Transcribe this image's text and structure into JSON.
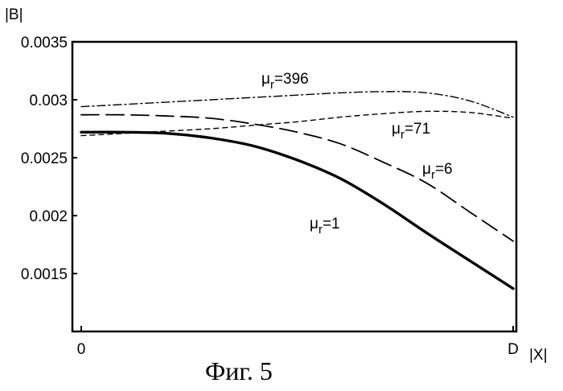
{
  "chart_data": {
    "type": "line",
    "ylabel": "|B|",
    "xlabel": "|X|",
    "caption": "Фиг. 5",
    "xlim": [
      0,
      1
    ],
    "ylim": [
      0.001,
      0.0035
    ],
    "x_ticks": [
      {
        "value": 0,
        "label": "0"
      },
      {
        "value": 1,
        "label": "D"
      }
    ],
    "y_ticks": [
      {
        "value": 0.0015,
        "label": "0.0015"
      },
      {
        "value": 0.002,
        "label": "0.002"
      },
      {
        "value": 0.0025,
        "label": "0.0025"
      },
      {
        "value": 0.003,
        "label": "0.003"
      },
      {
        "value": 0.0035,
        "label": "0.0035"
      }
    ],
    "grid": false,
    "series": [
      {
        "name_symbol": "μ",
        "name_sub": "r",
        "name_value": "=396",
        "style": "dash-dot",
        "x": [
          0,
          0.1,
          0.2,
          0.3,
          0.4,
          0.5,
          0.6,
          0.7,
          0.8,
          0.9,
          1.0
        ],
        "y": [
          0.00294,
          0.00296,
          0.00298,
          0.003,
          0.00302,
          0.00304,
          0.00306,
          0.00307,
          0.00306,
          0.00299,
          0.00285
        ]
      },
      {
        "name_symbol": "μ",
        "name_sub": "r",
        "name_value": "=71",
        "style": "short-dash",
        "x": [
          0,
          0.1,
          0.2,
          0.3,
          0.4,
          0.5,
          0.6,
          0.7,
          0.8,
          0.9,
          1.0
        ],
        "y": [
          0.00269,
          0.00271,
          0.00273,
          0.00275,
          0.00278,
          0.00281,
          0.00285,
          0.00288,
          0.0029,
          0.00289,
          0.00284
        ]
      },
      {
        "name_symbol": "μ",
        "name_sub": "r",
        "name_value": "=6",
        "style": "long-dash",
        "x": [
          0,
          0.1,
          0.2,
          0.3,
          0.4,
          0.5,
          0.6,
          0.7,
          0.8,
          0.9,
          1.0
        ],
        "y": [
          0.00287,
          0.00287,
          0.00286,
          0.00284,
          0.00279,
          0.00272,
          0.00262,
          0.00246,
          0.00228,
          0.00203,
          0.00178
        ]
      },
      {
        "name_symbol": "μ",
        "name_sub": "r",
        "name_value": "=1",
        "style": "solid",
        "x": [
          0,
          0.1,
          0.2,
          0.3,
          0.4,
          0.5,
          0.6,
          0.7,
          0.8,
          0.9,
          1.0
        ],
        "y": [
          0.00272,
          0.00272,
          0.00271,
          0.00267,
          0.0026,
          0.00248,
          0.00232,
          0.0021,
          0.00185,
          0.00161,
          0.00137
        ]
      }
    ]
  }
}
